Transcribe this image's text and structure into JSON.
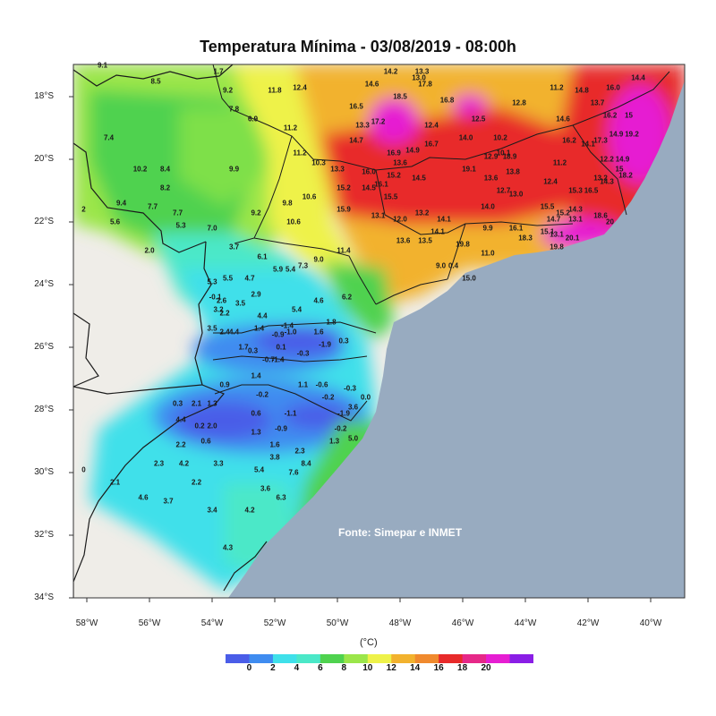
{
  "title": "Temperatura Mínima - 03/08/2019 - 08:00h",
  "source": "Fonte: Simepar e INMET",
  "unit": "(°C)",
  "lat_ticks": [
    "18°S",
    "20°S",
    "22°S",
    "24°S",
    "26°S",
    "28°S",
    "30°S",
    "32°S",
    "34°S"
  ],
  "lon_ticks": [
    "58°W",
    "56°W",
    "54°W",
    "52°W",
    "50°W",
    "48°W",
    "46°W",
    "44°W",
    "42°W",
    "40°W"
  ],
  "colorbar": {
    "labels": [
      "0",
      "2",
      "4",
      "6",
      "8",
      "10",
      "12",
      "14",
      "16",
      "18",
      "20"
    ],
    "colors": [
      "#4a5de8",
      "#3f8cf0",
      "#3fe0ea",
      "#4be8c8",
      "#4fd24f",
      "#9be64a",
      "#eef24a",
      "#f2b22e",
      "#f08a2e",
      "#e82a2a",
      "#e62888",
      "#e61ed2",
      "#8a1ee6"
    ]
  },
  "stations": [
    [
      "9.1",
      -57.5,
      17.0
    ],
    [
      "1.7",
      -53.8,
      17.2
    ],
    [
      "8.5",
      -55.8,
      17.5
    ],
    [
      "9.2",
      -53.5,
      17.8
    ],
    [
      "11.8",
      -52.0,
      17.8
    ],
    [
      "12.4",
      -51.2,
      17.7
    ],
    [
      "7.8",
      -53.3,
      18.4
    ],
    [
      "6.9",
      -52.7,
      18.7
    ],
    [
      "7.4",
      -57.3,
      19.3
    ],
    [
      "11.2",
      -51.5,
      19.0
    ],
    [
      "11.2",
      -51.2,
      19.8
    ],
    [
      "14.2",
      -48.3,
      17.2
    ],
    [
      "13.3",
      -47.3,
      17.2
    ],
    [
      "13.0",
      -47.4,
      17.4
    ],
    [
      "14.6",
      -48.9,
      17.6
    ],
    [
      "17.8",
      -47.2,
      17.6
    ],
    [
      "18.5",
      -48.0,
      18.0
    ],
    [
      "16.8",
      -46.5,
      18.1
    ],
    [
      "16.5",
      -49.4,
      18.3
    ],
    [
      "13.3",
      -49.2,
      18.9
    ],
    [
      "17.2",
      -48.7,
      18.8
    ],
    [
      "12.4",
      -47.0,
      18.9
    ],
    [
      "12.5",
      -45.5,
      18.7
    ],
    [
      "12.8",
      -44.2,
      18.2
    ],
    [
      "11.2",
      -43.0,
      17.7
    ],
    [
      "14.8",
      -42.2,
      17.8
    ],
    [
      "16.0",
      -41.2,
      17.7
    ],
    [
      "14.4",
      -40.4,
      17.4
    ],
    [
      "14.7",
      -49.4,
      19.4
    ],
    [
      "16.7",
      -47.0,
      19.5
    ],
    [
      "14.0",
      -45.9,
      19.3
    ],
    [
      "10.2",
      -44.8,
      19.3
    ],
    [
      "14.6",
      -42.8,
      18.7
    ],
    [
      "13.7",
      -41.7,
      18.2
    ],
    [
      "16.2",
      -41.3,
      18.6
    ],
    [
      "15",
      -40.7,
      18.6
    ],
    [
      "16.2",
      -42.6,
      19.4
    ],
    [
      "14.1",
      -42.0,
      19.5
    ],
    [
      "17.3",
      -41.6,
      19.4
    ],
    [
      "14.9",
      -41.1,
      19.2
    ],
    [
      "19.2",
      -40.6,
      19.2
    ],
    [
      "16.9",
      -48.2,
      19.8
    ],
    [
      "14.9",
      -47.6,
      19.7
    ],
    [
      "13.6",
      -48.0,
      20.1
    ],
    [
      "16.0",
      -49.0,
      20.4
    ],
    [
      "12.9",
      -45.1,
      19.9
    ],
    [
      "10.1",
      -44.7,
      19.8
    ],
    [
      "18.9",
      -44.5,
      19.9
    ],
    [
      "11.2",
      -42.9,
      20.1
    ],
    [
      "12.2",
      -41.4,
      20.0
    ],
    [
      "14.9",
      -40.9,
      20.0
    ],
    [
      "15",
      -41.0,
      20.3
    ],
    [
      "13.3",
      -50.0,
      20.3
    ],
    [
      "19.1",
      -45.8,
      20.3
    ],
    [
      "13.6",
      -45.1,
      20.6
    ],
    [
      "13.8",
      -44.4,
      20.4
    ],
    [
      "13.2",
      -41.6,
      20.6
    ],
    [
      "12.4",
      -43.2,
      20.7
    ],
    [
      "15.2",
      -48.2,
      20.5
    ],
    [
      "14.5",
      -47.4,
      20.6
    ],
    [
      "14.3",
      -41.4,
      20.7
    ],
    [
      "18.2",
      -40.8,
      20.5
    ],
    [
      "15.2",
      -49.8,
      20.9
    ],
    [
      "14.5",
      -49.0,
      20.9
    ],
    [
      "16.1",
      -48.6,
      20.8
    ],
    [
      "12.7",
      -44.7,
      21.0
    ],
    [
      "13.0",
      -44.3,
      21.1
    ],
    [
      "15.3",
      -42.4,
      21.0
    ],
    [
      "16.5",
      -41.9,
      21.0
    ],
    [
      "15.5",
      -48.3,
      21.2
    ],
    [
      "15.9",
      -49.8,
      21.6
    ],
    [
      "13.1",
      -48.7,
      21.8
    ],
    [
      "12.0",
      -48.0,
      21.9
    ],
    [
      "13.2",
      -47.3,
      21.7
    ],
    [
      "14.1",
      -46.6,
      21.9
    ],
    [
      "14.0",
      -45.2,
      21.5
    ],
    [
      "15.5",
      -43.3,
      21.5
    ],
    [
      "15.2",
      -42.8,
      21.7
    ],
    [
      "13.1",
      -42.4,
      21.9
    ],
    [
      "14.3",
      -42.4,
      21.6
    ],
    [
      "18.6",
      -41.6,
      21.8
    ],
    [
      "14.7",
      -43.1,
      21.9
    ],
    [
      "20",
      -41.3,
      22.0
    ],
    [
      "13.6",
      -47.9,
      22.6
    ],
    [
      "13.5",
      -47.2,
      22.6
    ],
    [
      "14.1",
      -46.8,
      22.3
    ],
    [
      "9.9",
      -45.2,
      22.2
    ],
    [
      "16.1",
      -44.3,
      22.2
    ],
    [
      "15.1",
      -43.3,
      22.3
    ],
    [
      "13.1",
      -43.0,
      22.4
    ],
    [
      "19.8",
      -46.0,
      22.7
    ],
    [
      "18.3",
      -44.0,
      22.5
    ],
    [
      "20.1",
      -42.5,
      22.5
    ],
    [
      "19.8",
      -43.0,
      22.8
    ],
    [
      "11.0",
      -45.2,
      23.0
    ],
    [
      "9.0",
      -46.7,
      23.4
    ],
    [
      "0.4",
      -46.3,
      23.4
    ],
    [
      "15.0",
      -45.8,
      23.8
    ],
    [
      "11.4",
      -49.8,
      22.9
    ],
    [
      "10.2",
      -56.3,
      20.3
    ],
    [
      "8.4",
      -55.5,
      20.3
    ],
    [
      "9.9",
      -53.3,
      20.3
    ],
    [
      "8.2",
      -55.5,
      20.9
    ],
    [
      "10.3",
      -50.6,
      20.1
    ],
    [
      "9.4",
      -56.9,
      21.4
    ],
    [
      "7.7",
      -55.9,
      21.5
    ],
    [
      "7.7",
      -55.1,
      21.7
    ],
    [
      "10.6",
      -50.9,
      21.2
    ],
    [
      "9.8",
      -51.6,
      21.4
    ],
    [
      "9.2",
      -52.6,
      21.7
    ],
    [
      "5.6",
      -57.1,
      22.0
    ],
    [
      "5.3",
      -55.0,
      22.1
    ],
    [
      "7.0",
      -54.0,
      22.2
    ],
    [
      "10.6",
      -51.4,
      22.0
    ],
    [
      "2",
      -58.1,
      21.6
    ],
    [
      "2.0",
      -56.0,
      22.9
    ],
    [
      "3.7",
      -53.3,
      22.8
    ],
    [
      "6.1",
      -52.4,
      23.1
    ],
    [
      "5.9",
      -51.9,
      23.5
    ],
    [
      "5.4",
      -51.5,
      23.5
    ],
    [
      "7.3",
      -51.1,
      23.4
    ],
    [
      "9.0",
      -50.6,
      23.2
    ],
    [
      "5.5",
      -53.5,
      23.8
    ],
    [
      "4.7",
      -52.8,
      23.8
    ],
    [
      "5.3",
      -54.0,
      23.9
    ],
    [
      "2.9",
      -52.6,
      24.3
    ],
    [
      "6.2",
      -49.7,
      24.4
    ],
    [
      "-0.1",
      -53.9,
      24.4
    ],
    [
      "2.6",
      -53.7,
      24.5
    ],
    [
      "3.5",
      -53.1,
      24.6
    ],
    [
      "4.6",
      -50.6,
      24.5
    ],
    [
      "5.4",
      -51.3,
      24.8
    ],
    [
      "3.2",
      -53.8,
      24.8
    ],
    [
      "2.2",
      -53.6,
      24.9
    ],
    [
      "4.4",
      -52.4,
      25.0
    ],
    [
      "1.8",
      -50.2,
      25.2
    ],
    [
      "3.5",
      -54.0,
      25.4
    ],
    [
      "2.4",
      -53.6,
      25.5
    ],
    [
      "4.4",
      -53.3,
      25.5
    ],
    [
      "1.4",
      -52.5,
      25.4
    ],
    [
      "-1.4",
      -51.6,
      25.3
    ],
    [
      "-0.9",
      -51.9,
      25.6
    ],
    [
      "-1.0",
      -51.5,
      25.5
    ],
    [
      "1.6",
      -50.6,
      25.5
    ],
    [
      "-1.9",
      -50.4,
      25.9
    ],
    [
      "0.3",
      -49.8,
      25.8
    ],
    [
      "1.7",
      -53.0,
      26.0
    ],
    [
      "0.3",
      -52.7,
      26.1
    ],
    [
      "0.1",
      -51.8,
      26.0
    ],
    [
      "-0.7",
      -52.2,
      26.4
    ],
    [
      "-1.4",
      -51.9,
      26.4
    ],
    [
      "-0.3",
      -51.1,
      26.2
    ],
    [
      "1.4",
      -52.6,
      26.9
    ],
    [
      "1.1",
      -51.1,
      27.2
    ],
    [
      "-0.6",
      -50.5,
      27.2
    ],
    [
      "-0.3",
      -49.6,
      27.3
    ],
    [
      "0.0",
      -49.1,
      27.6
    ],
    [
      "0.9",
      -53.6,
      27.2
    ],
    [
      "-0.2",
      -52.4,
      27.5
    ],
    [
      "-0.2",
      -50.3,
      27.6
    ],
    [
      "0.3",
      -55.1,
      27.8
    ],
    [
      "2.1",
      -54.5,
      27.8
    ],
    [
      "1.3",
      -54.0,
      27.8
    ],
    [
      "0.6",
      -52.6,
      28.1
    ],
    [
      "-1.1",
      -51.5,
      28.1
    ],
    [
      "-1.9",
      -49.8,
      28.1
    ],
    [
      "3.6",
      -49.5,
      27.9
    ],
    [
      "4.4",
      -55.0,
      28.3
    ],
    [
      "0.2",
      -54.4,
      28.5
    ],
    [
      "2.0",
      -54.0,
      28.5
    ],
    [
      "1.3",
      -52.6,
      28.7
    ],
    [
      "-0.9",
      -51.8,
      28.6
    ],
    [
      "-0.2",
      -49.9,
      28.6
    ],
    [
      "0.6",
      -54.2,
      29.0
    ],
    [
      "1.6",
      -52.0,
      29.1
    ],
    [
      "1.3",
      -50.1,
      29.0
    ],
    [
      "5.0",
      -49.5,
      28.9
    ],
    [
      "2.2",
      -55.0,
      29.1
    ],
    [
      "3.8",
      -52.0,
      29.5
    ],
    [
      "2.3",
      -51.2,
      29.3
    ],
    [
      "8.4",
      -51.0,
      29.7
    ],
    [
      "2.3",
      -55.7,
      29.7
    ],
    [
      "4.2",
      -54.9,
      29.7
    ],
    [
      "3.3",
      -53.8,
      29.7
    ],
    [
      "5.4",
      -52.5,
      29.9
    ],
    [
      "7.6",
      -51.4,
      30.0
    ],
    [
      "0",
      -58.1,
      29.9
    ],
    [
      "2.1",
      -57.1,
      30.3
    ],
    [
      "2.2",
      -54.5,
      30.3
    ],
    [
      "3.6",
      -52.3,
      30.5
    ],
    [
      "4.6",
      -56.2,
      30.8
    ],
    [
      "3.7",
      -55.4,
      30.9
    ],
    [
      "6.3",
      -51.8,
      30.8
    ],
    [
      "3.4",
      -54.0,
      31.2
    ],
    [
      "4.2",
      -52.8,
      31.2
    ],
    [
      "4.3",
      -53.5,
      32.4
    ]
  ]
}
